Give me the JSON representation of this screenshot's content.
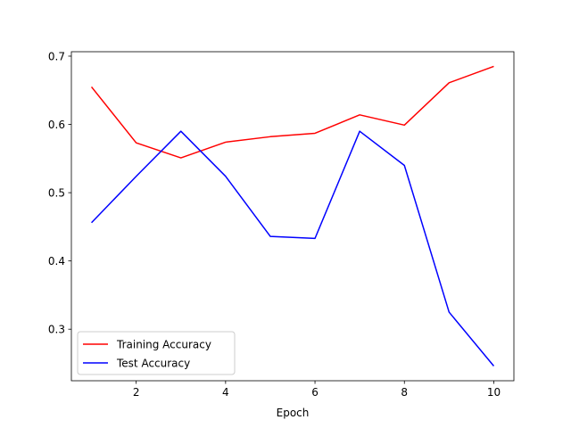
{
  "chart_data": {
    "type": "line",
    "title": "",
    "xlabel": "Epoch",
    "ylabel": "",
    "xlim": [
      0.55,
      10.45
    ],
    "ylim": [
      0.2245,
      0.7065
    ],
    "xticks": [
      2,
      4,
      6,
      8,
      10
    ],
    "yticks": [
      0.3,
      0.4,
      0.5,
      0.6,
      0.7
    ],
    "x": [
      1,
      2,
      3,
      4,
      5,
      6,
      7,
      8,
      9,
      10
    ],
    "series": [
      {
        "name": "Training Accuracy",
        "color": "#ff0000",
        "values": [
          0.655,
          0.573,
          0.551,
          0.574,
          0.582,
          0.587,
          0.614,
          0.599,
          0.661,
          0.685
        ]
      },
      {
        "name": "Test Accuracy",
        "color": "#0000ff",
        "values": [
          0.456,
          0.524,
          0.59,
          0.524,
          0.436,
          0.433,
          0.59,
          0.54,
          0.325,
          0.246
        ]
      }
    ],
    "grid": false,
    "legend_position": "lower-left"
  }
}
